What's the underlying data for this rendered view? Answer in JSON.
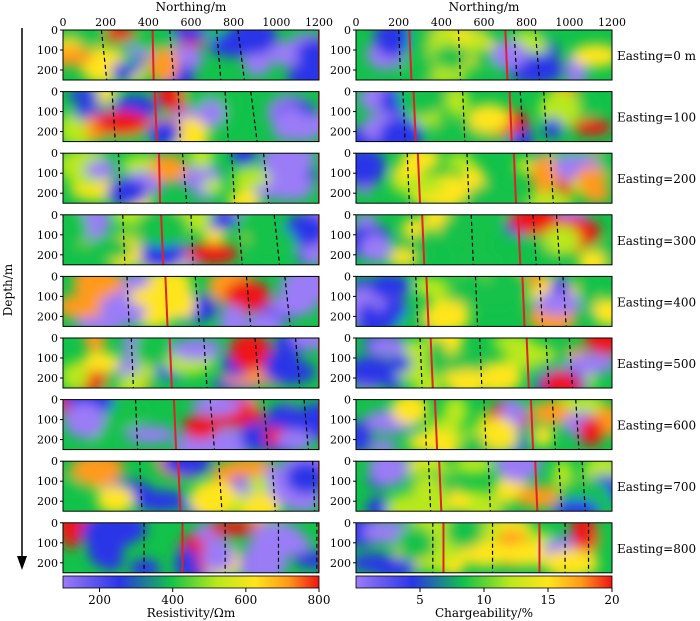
{
  "figure": {
    "x_axis_title": "Northing/m",
    "y_axis_title": "Depth/m",
    "left_panel_title": "Resistivity/Ωm",
    "right_panel_title": "Chargeability/%",
    "row_labels": [
      "Easting=0 m",
      "Easting=100 m",
      "Easting=200 m",
      "Easting=300 m",
      "Easting=400 m",
      "Easting=500 m",
      "Easting=600 m",
      "Easting=700 m",
      "Easting=800 m"
    ]
  },
  "chart_data": [
    {
      "type": "heatmap",
      "title": "",
      "xlabel": "Northing/m",
      "ylabel": "Depth/m",
      "xlim": [
        0,
        1200
      ],
      "ylim": [
        250,
        0
      ],
      "x_ticks": [
        0,
        200,
        400,
        600,
        800,
        1000,
        1200
      ],
      "y_ticks": [
        0,
        100,
        200
      ],
      "colorbar": {
        "label": "Resistivity/Ωm",
        "range": [
          100,
          800
        ],
        "ticks": [
          200,
          400,
          600,
          800
        ]
      },
      "rows": [
        "Easting=0 m",
        "Easting=100 m",
        "Easting=200 m",
        "Easting=300 m",
        "Easting=400 m",
        "Easting=500 m",
        "Easting=600 m",
        "Easting=700 m",
        "Easting=800 m"
      ],
      "outline_color": "#e0202a",
      "dashed_lines_x_top": [
        [
          180,
          500,
          720,
          820
        ],
        [
          230,
          540,
          760,
          880
        ],
        [
          260,
          560,
          790,
          940
        ],
        [
          280,
          600,
          820,
          990
        ],
        [
          300,
          620,
          860,
          1040
        ],
        [
          320,
          660,
          900,
          1090
        ],
        [
          340,
          690,
          940,
          1130
        ],
        [
          360,
          730,
          980,
          1170
        ],
        [
          380,
          760,
          1010,
          1190
        ]
      ],
      "red_outline_x": [
        [
          420,
          1200
        ],
        [
          430,
          1200
        ],
        [
          450,
          1200
        ],
        [
          460,
          1200
        ],
        [
          480,
          1200
        ],
        [
          500,
          1200
        ],
        [
          520,
          1200
        ],
        [
          540,
          1200
        ],
        [
          560,
          1200
        ]
      ]
    },
    {
      "type": "heatmap",
      "title": "",
      "xlabel": "Northing/m",
      "ylabel": "Depth/m",
      "xlim": [
        0,
        1200
      ],
      "ylim": [
        250,
        0
      ],
      "x_ticks": [
        0,
        200,
        400,
        600,
        800,
        1000,
        1200
      ],
      "y_ticks": [
        0,
        100,
        200
      ],
      "colorbar": {
        "label": "Chargeability/%",
        "range": [
          0,
          20
        ],
        "ticks": [
          5,
          10,
          15,
          20
        ]
      },
      "rows": [
        "Easting=0 m",
        "Easting=100 m",
        "Easting=200 m",
        "Easting=300 m",
        "Easting=400 m",
        "Easting=500 m",
        "Easting=600 m",
        "Easting=700 m",
        "Easting=800 m"
      ],
      "outline_color": "#e0202a",
      "dashed_lines_x_top": [
        [
          200,
          480,
          740,
          840
        ],
        [
          220,
          500,
          770,
          880
        ],
        [
          240,
          520,
          800,
          910
        ],
        [
          260,
          540,
          830,
          940
        ],
        [
          280,
          560,
          860,
          970
        ],
        [
          300,
          580,
          890,
          1000
        ],
        [
          320,
          600,
          920,
          1030
        ],
        [
          340,
          620,
          950,
          1060
        ],
        [
          360,
          640,
          980,
          1090
        ]
      ],
      "red_outline_x": [
        [
          250,
          700
        ],
        [
          270,
          720
        ],
        [
          290,
          740
        ],
        [
          310,
          760
        ],
        [
          330,
          780
        ],
        [
          350,
          800
        ],
        [
          370,
          820
        ],
        [
          390,
          840
        ],
        [
          410,
          860
        ]
      ]
    }
  ]
}
